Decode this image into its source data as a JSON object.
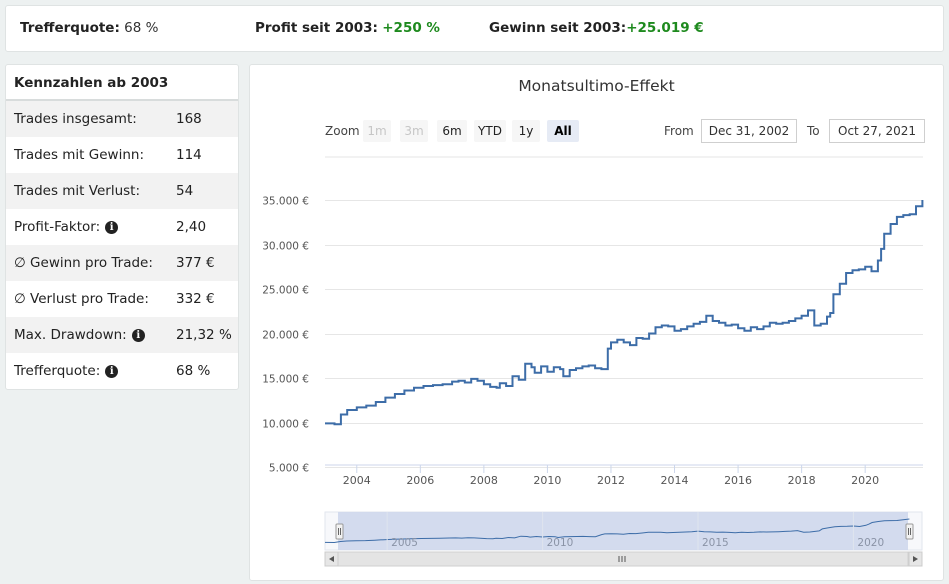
{
  "topbar": {
    "trefferquote_label": "Trefferquote:",
    "trefferquote_value": "68 %",
    "profit_label": "Profit seit 2003:",
    "profit_value": "+250 %",
    "gewinn_label": "Gewinn seit 2003:",
    "gewinn_value": "+25.019 €"
  },
  "kennzahlen": {
    "title": "Kennzahlen ab 2003",
    "rows": [
      {
        "label": "Trades insgesamt:",
        "value": "168",
        "info": false
      },
      {
        "label": "Trades mit Gewinn:",
        "value": "114",
        "info": false
      },
      {
        "label": "Trades mit Verlust:",
        "value": "54",
        "info": false
      },
      {
        "label": "Profit-Faktor:",
        "value": "2,40",
        "info": true
      },
      {
        "label": "∅ Gewinn pro Trade:",
        "value": "377 €",
        "info": false
      },
      {
        "label": "∅ Verlust pro Trade:",
        "value": "332 €",
        "info": false
      },
      {
        "label": "Max. Drawdown:",
        "value": "21,32 %",
        "info": true
      },
      {
        "label": "Trefferquote:",
        "value": "68 %",
        "info": true
      }
    ]
  },
  "controls": {
    "zoom_label": "Zoom",
    "zoom_buttons": [
      "1m",
      "3m",
      "6m",
      "YTD",
      "1y",
      "All"
    ],
    "zoom_disabled": [
      "1m",
      "3m"
    ],
    "zoom_active": "All",
    "from_label": "From",
    "from_value": "Dec 31, 2002",
    "to_label": "To",
    "to_value": "Oct 27, 2021"
  },
  "icons": {
    "info": "info-icon",
    "navigator_left": "arrow-left-icon",
    "navigator_right": "arrow-right-icon",
    "scrollbar_grip": "grip-icon"
  },
  "colors": {
    "line": "#3d6da8",
    "navigator_mask": "#ccd6eb",
    "positive": "#1e8a1e",
    "grid": "#e6e6e6"
  },
  "chart_data": {
    "type": "line",
    "title": "Monatsultimo-Effekt",
    "xlabel": "",
    "ylabel": "",
    "step": true,
    "xlim": [
      2003.0,
      2021.82
    ],
    "ylim": [
      5000,
      35000
    ],
    "yticks": [
      5000,
      10000,
      15000,
      20000,
      25000,
      30000,
      35000
    ],
    "ytick_labels": [
      "5.000 €",
      "10.000 €",
      "15.000 €",
      "20.000 €",
      "25.000 €",
      "30.000 €",
      "35.000 €"
    ],
    "xticks": [
      2004,
      2006,
      2008,
      2010,
      2012,
      2014,
      2016,
      2018,
      2020
    ],
    "navigator_ticks": [
      "2005",
      "2010",
      "2015",
      "2020"
    ],
    "series": [
      {
        "x": [
          2003.0,
          2003.3,
          2003.5,
          2003.7,
          2004.0,
          2004.3,
          2004.6,
          2004.9,
          2005.2,
          2005.5,
          2005.8,
          2006.1,
          2006.4,
          2006.7,
          2007.0,
          2007.2,
          2007.4,
          2007.6,
          2007.8,
          2008.0,
          2008.2,
          2008.4,
          2008.5,
          2008.7,
          2008.9,
          2009.1,
          2009.3,
          2009.5,
          2009.6,
          2009.8,
          2010.0,
          2010.2,
          2010.4,
          2010.5,
          2010.7,
          2010.9,
          2011.1,
          2011.3,
          2011.5,
          2011.7,
          2011.9,
          2012.0,
          2012.2,
          2012.4,
          2012.6,
          2012.8,
          2013.0,
          2013.2,
          2013.4,
          2013.6,
          2013.8,
          2014.0,
          2014.2,
          2014.4,
          2014.6,
          2014.8,
          2015.0,
          2015.2,
          2015.4,
          2015.6,
          2015.8,
          2016.0,
          2016.2,
          2016.4,
          2016.6,
          2016.8,
          2017.0,
          2017.2,
          2017.4,
          2017.6,
          2017.8,
          2018.0,
          2018.2,
          2018.4,
          2018.6,
          2018.8,
          2018.9,
          2019.0,
          2019.2,
          2019.4,
          2019.6,
          2019.8,
          2020.0,
          2020.2,
          2020.4,
          2020.5,
          2020.6,
          2020.8,
          2021.0,
          2021.2,
          2021.4,
          2021.6,
          2021.8
        ],
        "y": [
          9900,
          9800,
          10900,
          11400,
          11700,
          11900,
          12300,
          12800,
          13200,
          13600,
          13900,
          14100,
          14200,
          14300,
          14600,
          14700,
          14500,
          14900,
          14700,
          14300,
          14000,
          13900,
          14400,
          14100,
          15200,
          14800,
          16600,
          16200,
          15600,
          16300,
          15700,
          16200,
          16000,
          15200,
          15900,
          16100,
          16300,
          16400,
          16100,
          16000,
          18300,
          19000,
          19300,
          19000,
          18700,
          19500,
          19400,
          20000,
          20700,
          20900,
          20800,
          20300,
          20500,
          20800,
          21100,
          21300,
          22000,
          21400,
          21200,
          20900,
          21000,
          20600,
          20300,
          20700,
          20500,
          20800,
          21200,
          21100,
          21200,
          21400,
          21700,
          22000,
          22600,
          20900,
          21100,
          21900,
          22300,
          24400,
          25600,
          26800,
          27100,
          27200,
          27500,
          27000,
          28200,
          29500,
          31200,
          32300,
          33100,
          33300,
          33400,
          34300,
          35000
        ]
      }
    ]
  }
}
